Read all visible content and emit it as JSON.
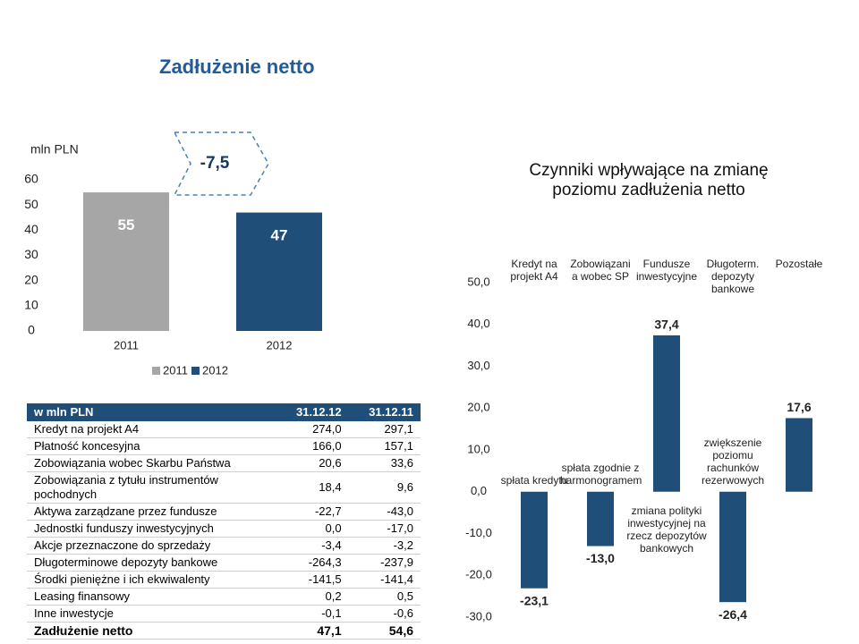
{
  "title": "Zadłużenie netto",
  "chart_data": [
    {
      "type": "bar",
      "y_label": "mln PLN",
      "categories": [
        "2011",
        "2012"
      ],
      "series": [
        {
          "name": "2011",
          "color": "#a6a6a6",
          "values": [
            55,
            null
          ]
        },
        {
          "name": "2012",
          "color": "#1f4e79",
          "values": [
            null,
            47
          ]
        }
      ],
      "ylim": [
        0,
        60
      ],
      "yticks": [
        0,
        10,
        20,
        30,
        40,
        50,
        60
      ],
      "annotation": "-7,5",
      "legend": "bottom",
      "grid": false
    },
    {
      "type": "bar",
      "title": "Czynniki wpływające na zmianę poziomu zadłużenia netto",
      "categories": [
        "Kredyt na projekt A4",
        "Zobowiązani a wobec SP",
        "Fundusze inwestycyjne",
        "Długoterm. depozyty bankowe",
        "Pozostałe"
      ],
      "values": [
        -23.1,
        -13.0,
        37.4,
        -26.4,
        17.6
      ],
      "value_labels": [
        "-23,1",
        "-13,0",
        "37,4",
        "-26,4",
        "17,6"
      ],
      "annotations": [
        "spłata kredytu",
        "spłata zgodnie z harmonogramem",
        "zmiana polityki inwestycyjnej na rzecz depozytów bankowych",
        "zwiększenie poziomu rachunków rezerwowych",
        null
      ],
      "color": "#1f4e79",
      "ylim": [
        -30,
        50
      ],
      "yticks": [
        {
          "value": -30,
          "label": "-30,0"
        },
        {
          "value": -20,
          "label": "-20,0"
        },
        {
          "value": -10,
          "label": "-10,0"
        },
        {
          "value": 0,
          "label": "0,0"
        },
        {
          "value": 10,
          "label": "10,0"
        },
        {
          "value": 20,
          "label": "20,0"
        },
        {
          "value": 30,
          "label": "30,0"
        },
        {
          "value": 40,
          "label": "40,0"
        },
        {
          "value": 50,
          "label": "50,0"
        }
      ],
      "grid": false
    }
  ],
  "table": {
    "header": [
      "w mln PLN",
      "31.12.12",
      "31.12.11"
    ],
    "rows": [
      [
        "Kredyt na projekt A4",
        "274,0",
        "297,1"
      ],
      [
        "Płatność koncesyjna",
        "166,0",
        "157,1"
      ],
      [
        "Zobowiązania wobec Skarbu Państwa",
        "20,6",
        "33,6"
      ],
      [
        "Zobowiązania z tytułu instrumentów pochodnych",
        "18,4",
        "9,6"
      ],
      [
        "Aktywa zarządzane przez fundusze",
        "-22,7",
        "-43,0"
      ],
      [
        "Jednostki funduszy inwestycyjnych",
        "0,0",
        "-17,0"
      ],
      [
        "Akcje przeznaczone do sprzedaży",
        "-3,4",
        "-3,2"
      ],
      [
        "Długoterminowe depozyty bankowe",
        "-264,3",
        "-237,9"
      ],
      [
        "Środki pieniężne i ich ekwiwalenty",
        "-141,5",
        "-141,4"
      ],
      [
        "Leasing finansowy",
        "0,2",
        "0,5"
      ],
      [
        "Inne inwestycje",
        "-0,1",
        "-0,6"
      ],
      [
        "Zadłużenie netto",
        "47,1",
        "54,6"
      ]
    ]
  }
}
